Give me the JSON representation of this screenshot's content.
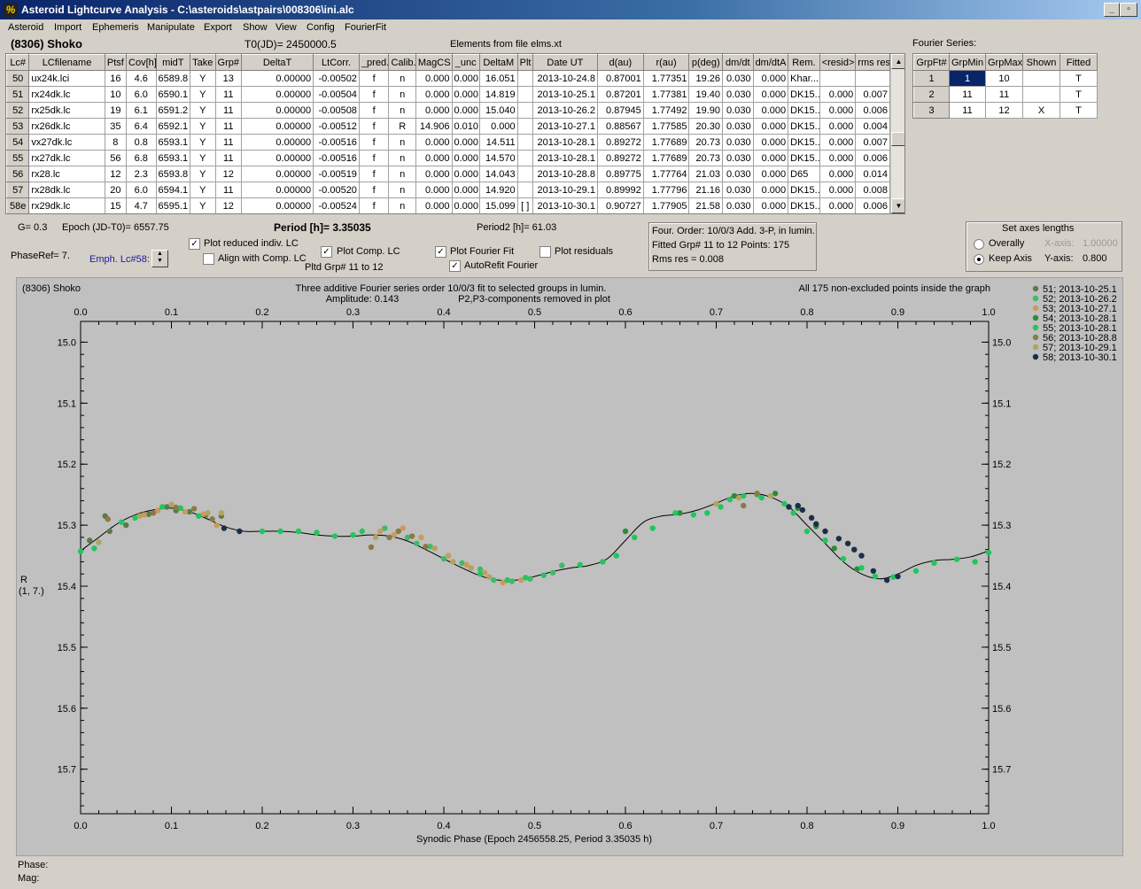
{
  "window": {
    "title": "Asteroid Lightcurve Analysis - C:\\asteroids\\astpairs\\008306\\ini.alc",
    "app_icon": "app-icon",
    "minimize_label": "_",
    "restore_label": "▫",
    "close_label": "×"
  },
  "menu": [
    "Asteroid",
    "Import",
    "Ephemeris",
    "Manipulate",
    "Export",
    "Show",
    "View",
    "Config",
    "FourierFit"
  ],
  "header": {
    "asteroid": "(8306) Shoko",
    "t0": "T0(JD)= 2450000.5",
    "elements": "Elements from file elms.xt"
  },
  "lc_table": {
    "columns": [
      "Lc#",
      "LCfilename",
      "Ptsf",
      "Cov[h]",
      "midT",
      "Take",
      "Grp#",
      "DeltaT",
      "LtCorr.",
      "_pred.",
      "Calib.",
      "MagCS",
      "_unc",
      "DeltaM",
      "Plt",
      "Date UT",
      "d(au)",
      "r(au)",
      "p(deg)",
      "dm/dt",
      "dm/dtA",
      "Rem.",
      "<resid>",
      "rms res"
    ],
    "rows": [
      [
        "50",
        "ux24k.lci",
        "16",
        "4.6",
        "6589.8",
        "Y",
        "13",
        "0.00000",
        "-0.00502",
        "f",
        "n",
        "0.000",
        "0.000",
        "16.051",
        "",
        "2013-10-24.8",
        "0.87001",
        "1.77351",
        "19.26",
        "0.030",
        "0.000",
        "Khar...",
        "",
        ""
      ],
      [
        "51",
        "rx24dk.lc",
        "10",
        "6.0",
        "6590.1",
        "Y",
        "11",
        "0.00000",
        "-0.00504",
        "f",
        "n",
        "0.000",
        "0.000",
        "14.819",
        "",
        "2013-10-25.1",
        "0.87201",
        "1.77381",
        "19.40",
        "0.030",
        "0.000",
        "DK15..",
        "0.000",
        "0.007"
      ],
      [
        "52",
        "rx25dk.lc",
        "19",
        "6.1",
        "6591.2",
        "Y",
        "11",
        "0.00000",
        "-0.00508",
        "f",
        "n",
        "0.000",
        "0.000",
        "15.040",
        "",
        "2013-10-26.2",
        "0.87945",
        "1.77492",
        "19.90",
        "0.030",
        "0.000",
        "DK15..",
        "0.000",
        "0.006"
      ],
      [
        "53",
        "rx26dk.lc",
        "35",
        "6.4",
        "6592.1",
        "Y",
        "11",
        "0.00000",
        "-0.00512",
        "f",
        "R",
        "14.906",
        "0.010",
        "0.000",
        "",
        "2013-10-27.1",
        "0.88567",
        "1.77585",
        "20.30",
        "0.030",
        "0.000",
        "DK15..",
        "0.000",
        "0.004"
      ],
      [
        "54",
        "vx27dk.lc",
        "8",
        "0.8",
        "6593.1",
        "Y",
        "11",
        "0.00000",
        "-0.00516",
        "f",
        "n",
        "0.000",
        "0.000",
        "14.511",
        "",
        "2013-10-28.1",
        "0.89272",
        "1.77689",
        "20.73",
        "0.030",
        "0.000",
        "DK15..",
        "0.000",
        "0.007"
      ],
      [
        "55",
        "rx27dk.lc",
        "56",
        "6.8",
        "6593.1",
        "Y",
        "11",
        "0.00000",
        "-0.00516",
        "f",
        "n",
        "0.000",
        "0.000",
        "14.570",
        "",
        "2013-10-28.1",
        "0.89272",
        "1.77689",
        "20.73",
        "0.030",
        "0.000",
        "DK15..",
        "0.000",
        "0.006"
      ],
      [
        "56",
        "rx28.lc",
        "12",
        "2.3",
        "6593.8",
        "Y",
        "12",
        "0.00000",
        "-0.00519",
        "f",
        "n",
        "0.000",
        "0.000",
        "14.043",
        "",
        "2013-10-28.8",
        "0.89775",
        "1.77764",
        "21.03",
        "0.030",
        "0.000",
        "D65",
        "0.000",
        "0.014"
      ],
      [
        "57",
        "rx28dk.lc",
        "20",
        "6.0",
        "6594.1",
        "Y",
        "11",
        "0.00000",
        "-0.00520",
        "f",
        "n",
        "0.000",
        "0.000",
        "14.920",
        "",
        "2013-10-29.1",
        "0.89992",
        "1.77796",
        "21.16",
        "0.030",
        "0.000",
        "DK15..",
        "0.000",
        "0.008"
      ],
      [
        "58e",
        "rx29dk.lc",
        "15",
        "4.7",
        "6595.1",
        "Y",
        "12",
        "0.00000",
        "-0.00524",
        "f",
        "n",
        "0.000",
        "0.000",
        "15.099",
        "[ ]",
        "2013-10-30.1",
        "0.90727",
        "1.77905",
        "21.58",
        "0.030",
        "0.000",
        "DK15..",
        "0.000",
        "0.006"
      ]
    ]
  },
  "fourier_series": {
    "title": "Fourier Series:",
    "columns": [
      "GrpFt#",
      "GrpMin",
      "GrpMax",
      "Shown",
      "Fitted"
    ],
    "rows": [
      [
        "1",
        "1",
        "10",
        "",
        "T"
      ],
      [
        "2",
        "11",
        "11",
        "",
        "T"
      ],
      [
        "3",
        "11",
        "12",
        "X",
        "T"
      ]
    ]
  },
  "params": {
    "g": "G= 0.3",
    "epoch": "Epoch (JD-T0)= 6557.75",
    "period": "Period [h]= 3.35035",
    "period2": "Period2 [h]= 61.03",
    "phaseref": "PhaseRef= 7.",
    "emph_lc": "Emph. Lc#58:",
    "plot_reduced": "Plot reduced indiv. LC",
    "align_comp": "Align with Comp. LC",
    "plot_comp": "Plot Comp. LC",
    "pltd_grp": "Pltd Grp#  11 to   12",
    "plot_fourier": "Plot Fourier Fit",
    "autorefit": "AutoRefit Fourier",
    "plot_residuals": "Plot residuals",
    "check_mark": "✓"
  },
  "fit_info": {
    "line1": "Four. Order: 10/0/3  Add. 3-P, in lumin.",
    "line2": "Fitted Grp# 11 to 12 Points: 175",
    "line3": "Rms res     = 0.008"
  },
  "axes_box": {
    "title": "Set axes lengths",
    "overally": "Overally",
    "keep_axis": "Keep Axis",
    "x_axis_label": "X-axis:",
    "x_axis_value": "1.00000",
    "y_axis_label": "Y-axis:",
    "y_axis_value": "0.800",
    "selected": "Keep Axis"
  },
  "plot": {
    "asteroid_label": "(8306) Shoko",
    "title_line1": "Three additive Fourier series order 10/0/3 fit to selected groups in lumin.",
    "title_line2": "Amplitude: 0.143",
    "title_line3": "P2,P3-components removed in plot",
    "points_note": "All 175 non-excluded points inside the graph",
    "ylabel_line1": "R",
    "ylabel_line2": "(1, 7.)",
    "xlabel": "Synodic Phase (Epoch 2456558.25, Period 3.35035 h)",
    "background_color": "#c0c0c0"
  },
  "chart_data": {
    "type": "scatter",
    "title": "Three additive Fourier series order 10/0/3 fit to selected groups in lumin.",
    "xlabel": "Synodic Phase (Epoch 2456558.25, Period 3.35035 h)",
    "ylabel": "R (1, 7.)",
    "xlim": [
      0.0,
      1.0
    ],
    "ylim": [
      15.0,
      15.8
    ],
    "y_inverted": true,
    "x_ticks": [
      "0.0",
      "0.1",
      "0.2",
      "0.3",
      "0.4",
      "0.5",
      "0.6",
      "0.7",
      "0.8",
      "0.9",
      "1.0"
    ],
    "y_ticks": [
      "15.0",
      "15.1",
      "15.2",
      "15.3",
      "15.4",
      "15.5",
      "15.6",
      "15.7"
    ],
    "grid": false,
    "legend_position": "right",
    "fit_curve": {
      "name": "",
      "color": "#000000",
      "x": [
        0.0,
        0.02,
        0.04,
        0.06,
        0.08,
        0.1,
        0.12,
        0.14,
        0.16,
        0.18,
        0.2,
        0.22,
        0.24,
        0.26,
        0.28,
        0.3,
        0.32,
        0.34,
        0.36,
        0.38,
        0.4,
        0.42,
        0.44,
        0.46,
        0.48,
        0.5,
        0.52,
        0.54,
        0.56,
        0.58,
        0.6,
        0.62,
        0.64,
        0.66,
        0.68,
        0.7,
        0.72,
        0.74,
        0.76,
        0.78,
        0.8,
        0.82,
        0.84,
        0.86,
        0.88,
        0.9,
        0.92,
        0.94,
        0.96,
        0.98,
        1.0
      ],
      "y": [
        15.342,
        15.32,
        15.298,
        15.283,
        15.275,
        15.272,
        15.278,
        15.29,
        15.303,
        15.31,
        15.31,
        15.31,
        15.312,
        15.316,
        15.318,
        15.318,
        15.316,
        15.318,
        15.326,
        15.34,
        15.355,
        15.37,
        15.383,
        15.39,
        15.39,
        15.384,
        15.376,
        15.37,
        15.366,
        15.355,
        15.325,
        15.295,
        15.285,
        15.282,
        15.275,
        15.264,
        15.252,
        15.248,
        15.254,
        15.27,
        15.3,
        15.33,
        15.36,
        15.38,
        15.388,
        15.38,
        15.366,
        15.358,
        15.356,
        15.352,
        15.342
      ]
    },
    "series": [
      {
        "name": "51; 2013-10-25.1",
        "color": "#5a7a4a",
        "x": [
          0.01,
          0.027,
          0.032,
          0.05,
          0.075,
          0.095,
          0.105,
          0.12,
          0.138,
          0.155
        ],
        "y": [
          15.325,
          15.285,
          15.31,
          15.3,
          15.282,
          15.27,
          15.276,
          15.278,
          15.283,
          15.285
        ]
      },
      {
        "name": "52; 2013-10-26.2",
        "color": "#3dbb6a",
        "x": [
          0.335,
          0.35,
          0.36,
          0.37,
          0.385,
          0.4,
          0.42,
          0.44,
          0.455,
          0.475,
          0.495,
          0.52,
          0.53
        ],
        "y": [
          15.305,
          15.31,
          15.32,
          15.33,
          15.335,
          15.355,
          15.362,
          15.372,
          15.39,
          15.392,
          15.388,
          15.378,
          15.366
        ]
      },
      {
        "name": "53; 2013-10-27.1",
        "color": "#c99a5e",
        "x": [
          0.07,
          0.085,
          0.115,
          0.135,
          0.15,
          0.33,
          0.345,
          0.355,
          0.375,
          0.405,
          0.425,
          0.445,
          0.465,
          0.485
        ],
        "y": [
          15.283,
          15.276,
          15.278,
          15.282,
          15.3,
          15.31,
          15.316,
          15.305,
          15.32,
          15.35,
          15.365,
          15.378,
          15.394,
          15.39
        ]
      },
      {
        "name": "54; 2013-10-28.1",
        "color": "#2e8b3a",
        "x": [
          0.6,
          0.66,
          0.72,
          0.765,
          0.79,
          0.81,
          0.83,
          0.855
        ],
        "y": [
          15.31,
          15.28,
          15.252,
          15.248,
          15.272,
          15.302,
          15.338,
          15.372
        ]
      },
      {
        "name": "55; 2013-10-28.1",
        "color": "#22c55e",
        "x": [
          0.0,
          0.015,
          0.045,
          0.06,
          0.09,
          0.11,
          0.13,
          0.2,
          0.22,
          0.24,
          0.26,
          0.28,
          0.3,
          0.31,
          0.44,
          0.47,
          0.49,
          0.51,
          0.55,
          0.575,
          0.59,
          0.61,
          0.63,
          0.655,
          0.675,
          0.69,
          0.705,
          0.715,
          0.73,
          0.745,
          0.75,
          0.775,
          0.785,
          0.8,
          0.82,
          0.84,
          0.86,
          0.875,
          0.895,
          0.92,
          0.94,
          0.965,
          0.985,
          1.0
        ],
        "y": [
          15.343,
          15.338,
          15.295,
          15.288,
          15.27,
          15.272,
          15.285,
          15.31,
          15.31,
          15.31,
          15.312,
          15.318,
          15.316,
          15.31,
          15.38,
          15.39,
          15.386,
          15.382,
          15.365,
          15.36,
          15.35,
          15.32,
          15.305,
          15.28,
          15.283,
          15.28,
          15.27,
          15.258,
          15.252,
          15.25,
          15.255,
          15.265,
          15.28,
          15.31,
          15.325,
          15.355,
          15.37,
          15.384,
          15.385,
          15.375,
          15.362,
          15.356,
          15.36,
          15.345
        ]
      },
      {
        "name": "56; 2013-10-28.8",
        "color": "#8a7a45",
        "x": [
          0.03,
          0.08,
          0.105,
          0.125,
          0.145,
          0.32,
          0.34,
          0.35,
          0.365,
          0.38,
          0.73,
          0.745
        ],
        "y": [
          15.29,
          15.28,
          15.271,
          15.273,
          15.29,
          15.336,
          15.32,
          15.31,
          15.318,
          15.335,
          15.268,
          15.248
        ]
      },
      {
        "name": "57; 2013-10-29.1",
        "color": "#b2a35e",
        "x": [
          0.02,
          0.065,
          0.1,
          0.14,
          0.155,
          0.325,
          0.39,
          0.41,
          0.43,
          0.45,
          0.7,
          0.725,
          0.76
        ],
        "y": [
          15.328,
          15.285,
          15.266,
          15.28,
          15.28,
          15.32,
          15.338,
          15.36,
          15.37,
          15.385,
          15.265,
          15.255,
          15.252
        ]
      },
      {
        "name": "58; 2013-10-30.1",
        "color": "#1a2e4a",
        "x": [
          0.158,
          0.175,
          0.78,
          0.79,
          0.795,
          0.805,
          0.81,
          0.82,
          0.835,
          0.845,
          0.852,
          0.86,
          0.873,
          0.888,
          0.9
        ],
        "y": [
          15.305,
          15.31,
          15.27,
          15.268,
          15.275,
          15.288,
          15.298,
          15.31,
          15.322,
          15.33,
          15.34,
          15.35,
          15.375,
          15.39,
          15.384
        ]
      }
    ]
  },
  "status": {
    "phase_label": "Phase:",
    "mag_label": "Mag:"
  }
}
